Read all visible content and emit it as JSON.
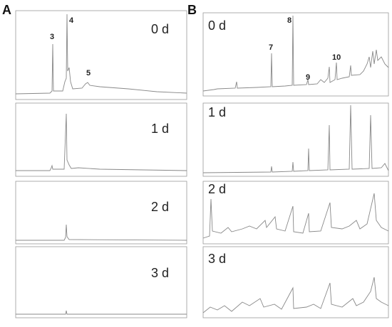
{
  "panels": [
    {
      "label": "A",
      "days": [
        "0 d",
        "1 d",
        "2 d",
        "3 d"
      ],
      "peaks": [
        "3",
        "4",
        "5"
      ]
    },
    {
      "label": "B",
      "days": [
        "0 d",
        "1 d",
        "2 d",
        "3 d"
      ],
      "peaks": [
        "7",
        "8",
        "9",
        "10"
      ]
    }
  ]
}
